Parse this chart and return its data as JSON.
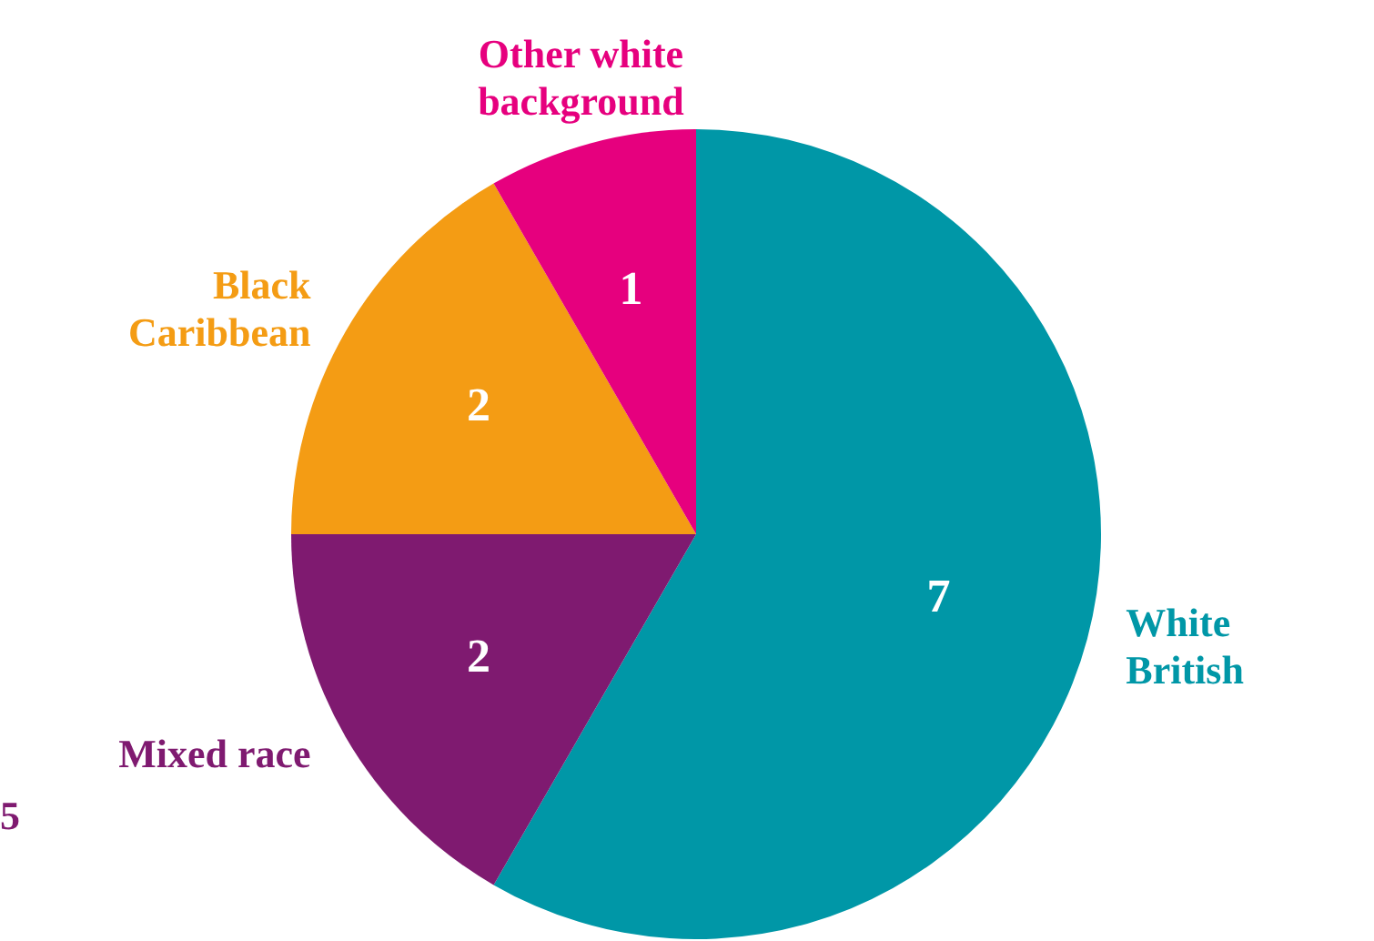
{
  "chart_data": {
    "type": "pie",
    "categories": [
      "White British",
      "Mixed race",
      "Black Caribbean",
      "Other white background"
    ],
    "values": [
      7,
      2,
      2,
      1
    ],
    "colors": [
      "#0097a7",
      "#7f1a70",
      "#f49c14",
      "#e6007e"
    ],
    "data_labels": true,
    "legend": false,
    "annotations": [
      "5"
    ]
  }
}
